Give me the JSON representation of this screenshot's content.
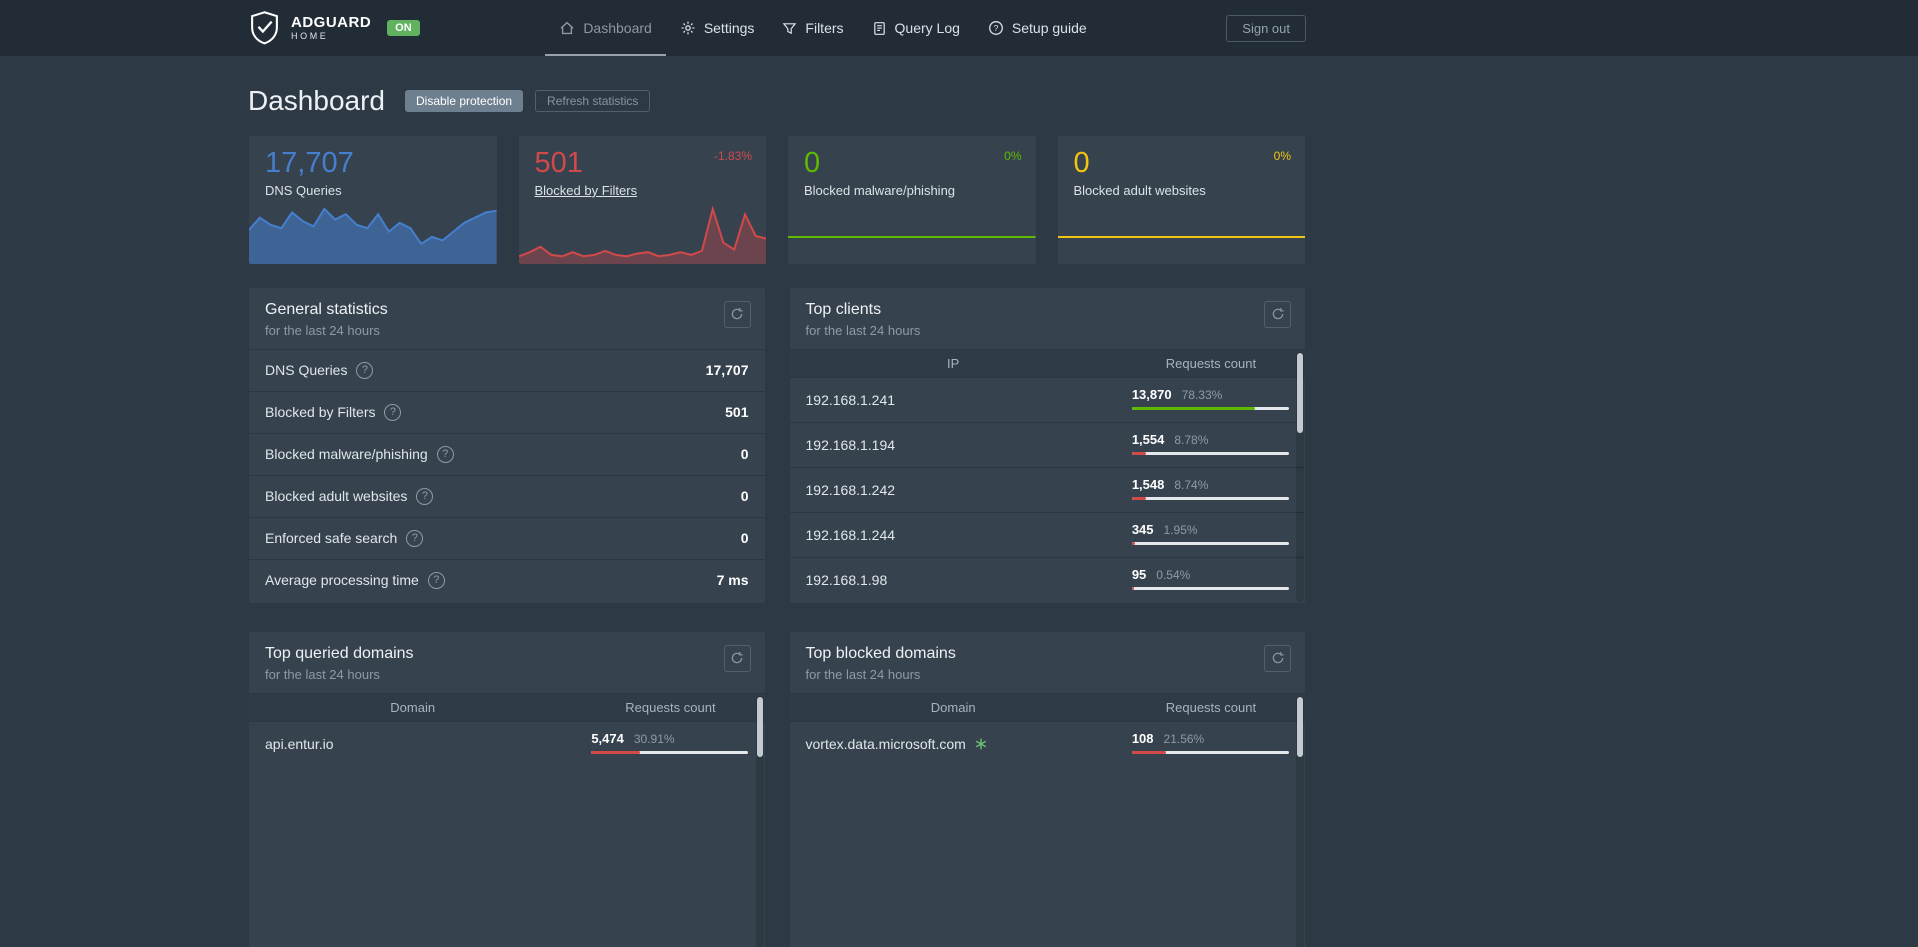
{
  "theme": {
    "blue": "#467fcf",
    "red": "#d2494a",
    "green": "#5eba00",
    "yellow": "#f1c40f"
  },
  "navbar": {
    "brand_name": "ADGUARD",
    "brand_sub": "HOME",
    "protection_badge": "ON",
    "items": [
      {
        "label": "Dashboard"
      },
      {
        "label": "Settings"
      },
      {
        "label": "Filters"
      },
      {
        "label": "Query Log"
      },
      {
        "label": "Setup guide"
      }
    ],
    "sign_out": "Sign out"
  },
  "page": {
    "title": "Dashboard",
    "disable_protection": "Disable protection",
    "refresh_statistics": "Refresh statistics"
  },
  "stat_cards": [
    {
      "value": "17,707",
      "label": "DNS Queries",
      "delta": "",
      "accent": "#467fcf",
      "fill": "rgba(70,127,207,0.55)",
      "spark": [
        38,
        52,
        44,
        40,
        58,
        48,
        42,
        62,
        50,
        56,
        44,
        40,
        56,
        36,
        46,
        40,
        22,
        30,
        26,
        36,
        46,
        52,
        58,
        60
      ]
    },
    {
      "value": "501",
      "label": "Blocked by Filters",
      "delta": "-1.83%",
      "accent": "#d2494a",
      "fill": "rgba(210,73,74,0.35)",
      "spark": [
        10,
        16,
        24,
        12,
        10,
        16,
        10,
        12,
        18,
        12,
        10,
        14,
        16,
        10,
        12,
        16,
        12,
        18,
        80,
        30,
        20,
        72,
        40,
        36
      ]
    },
    {
      "value": "0",
      "label": "Blocked malware/phishing",
      "delta": "0%",
      "accent": "#5eba00",
      "fill": "none",
      "spark": [
        0,
        0
      ]
    },
    {
      "value": "0",
      "label": "Blocked adult websites",
      "delta": "0%",
      "accent": "#f1c40f",
      "fill": "none",
      "spark": [
        0,
        0
      ]
    }
  ],
  "general_statistics": {
    "title": "General statistics",
    "subtitle": "for the last 24 hours",
    "rows": [
      {
        "label": "DNS Queries",
        "value": "17,707"
      },
      {
        "label": "Blocked by Filters",
        "value": "501"
      },
      {
        "label": "Blocked malware/phishing",
        "value": "0"
      },
      {
        "label": "Blocked adult websites",
        "value": "0"
      },
      {
        "label": "Enforced safe search",
        "value": "0"
      },
      {
        "label": "Average processing time",
        "value": "7 ms"
      }
    ]
  },
  "top_clients": {
    "title": "Top clients",
    "subtitle": "for the last 24 hours",
    "col_ip": "IP",
    "col_count": "Requests count",
    "rows": [
      {
        "ip": "192.168.1.241",
        "count": "13,870",
        "percent": "78.33%",
        "pct": 78.33,
        "color": "#5eba00"
      },
      {
        "ip": "192.168.1.194",
        "count": "1,554",
        "percent": "8.78%",
        "pct": 8.78,
        "color": "#d2494a"
      },
      {
        "ip": "192.168.1.242",
        "count": "1,548",
        "percent": "8.74%",
        "pct": 8.74,
        "color": "#d2494a"
      },
      {
        "ip": "192.168.1.244",
        "count": "345",
        "percent": "1.95%",
        "pct": 1.95,
        "color": "#d2494a"
      },
      {
        "ip": "192.168.1.98",
        "count": "95",
        "percent": "0.54%",
        "pct": 0.54,
        "color": "#d2494a"
      }
    ]
  },
  "top_queried_domains": {
    "title": "Top queried domains",
    "subtitle": "for the last 24 hours",
    "col_domain": "Domain",
    "col_count": "Requests count",
    "rows": [
      {
        "domain": "api.entur.io",
        "count": "5,474",
        "percent": "30.91%",
        "pct": 30.91,
        "color": "#d2494a"
      }
    ]
  },
  "top_blocked_domains": {
    "title": "Top blocked domains",
    "subtitle": "for the last 24 hours",
    "col_domain": "Domain",
    "col_count": "Requests count",
    "rows": [
      {
        "domain": "vortex.data.microsoft.com",
        "count": "108",
        "percent": "21.56%",
        "pct": 21.56,
        "color": "#d2494a"
      }
    ]
  }
}
